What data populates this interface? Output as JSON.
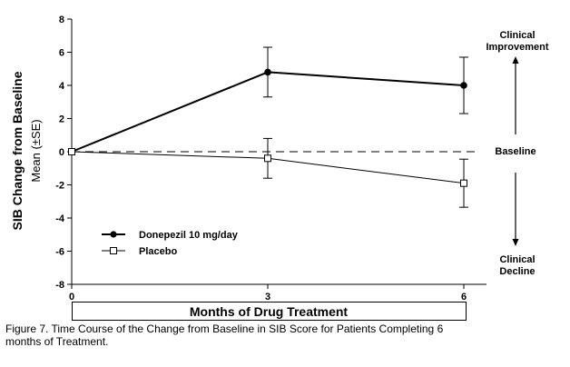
{
  "chart_data": {
    "type": "line",
    "ylabel": "SIB Change from Baseline",
    "ylabel2": "Mean (±SE)",
    "xlabel": "Months of Drug Treatment",
    "x": [
      0,
      3,
      6
    ],
    "xlim": [
      0,
      6
    ],
    "ylim": [
      -8,
      8
    ],
    "yticks": [
      "8",
      "6",
      "4",
      "2",
      "0",
      "-2",
      "-4",
      "-6",
      "-8"
    ],
    "xticks": [
      "0",
      "3",
      "6"
    ],
    "baseline": 0,
    "series": [
      {
        "name": "Donepezil 10 mg/day",
        "marker": "filled-circle",
        "values": [
          0,
          4.8,
          4.0
        ],
        "se": [
          0,
          1.5,
          1.7
        ]
      },
      {
        "name": "Placebo",
        "marker": "open-square",
        "values": [
          0,
          -0.4,
          -1.9
        ],
        "se": [
          0,
          1.2,
          1.45
        ]
      }
    ],
    "annotations": {
      "improvement_line1": "Clinical",
      "improvement_line2": "Improvement",
      "baseline": "Baseline",
      "decline_line1": "Clinical",
      "decline_line2": "Decline"
    },
    "legend": "lower-left"
  },
  "caption_line1": "Figure 7. Time Course of the Change from Baseline in SIB Score for Patients Completing 6",
  "caption_line2": "months of Treatment."
}
